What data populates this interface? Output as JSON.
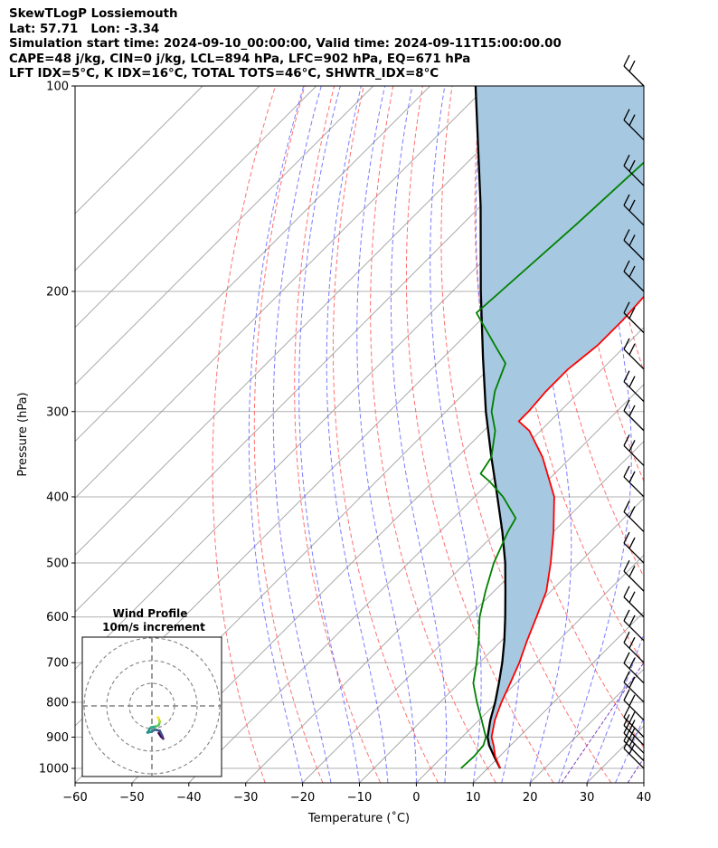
{
  "header": {
    "line1": "SkewTLogP Lossiemouth",
    "line2": "Lat: 57.71   Lon: -3.34",
    "line3": "Simulation start time: 2024-09-10_00:00:00, Valid time: 2024-09-11T15:00:00.00",
    "line4": "CAPE=48 j/kg, CIN=0 j/kg, LCL=894 hPa, LFC=902 hPa, EQ=671 hPa",
    "line5": "LFT IDX=5°C, K IDX=16°C, TOTAL TOTS=46°C, SHWTR_IDX=8°C"
  },
  "chart_data": {
    "type": "line",
    "xlabel": "Temperature (˚C)",
    "ylabel": "Pressure (hPa)",
    "xlim": [
      -60,
      40
    ],
    "ylim": [
      1050,
      100
    ],
    "y_scale": "log",
    "skew": true,
    "grid": true,
    "x_ticks": [
      "−60",
      "−50",
      "−40",
      "−30",
      "−20",
      "−10",
      "0",
      "10",
      "20",
      "30",
      "40"
    ],
    "y_ticks": [
      "100",
      "200",
      "300",
      "400",
      "500",
      "600",
      "700",
      "800",
      "900",
      "1000"
    ],
    "colors": {
      "temperature": "#ff0000",
      "dewpoint": "#008000",
      "parcel": "#000000",
      "cape_fill": "#a6c8e0",
      "dry_adiabat": "#ff6060",
      "moist_adiabat": "#5a5aff",
      "mixing_ratio": "#7d3fbf",
      "isotherm": "#a0a0a0"
    },
    "series": [],
    "temperature_profile": [
      {
        "p": 1000,
        "t": 12.2
      },
      {
        "p": 960,
        "t": 9.2
      },
      {
        "p": 925,
        "t": 7.0
      },
      {
        "p": 900,
        "t": 5.2
      },
      {
        "p": 850,
        "t": 2.8
      },
      {
        "p": 800,
        "t": 0.8
      },
      {
        "p": 750,
        "t": -1.0
      },
      {
        "p": 700,
        "t": -3.0
      },
      {
        "p": 650,
        "t": -5.5
      },
      {
        "p": 600,
        "t": -8.0
      },
      {
        "p": 550,
        "t": -10.8
      },
      {
        "p": 500,
        "t": -15.0
      },
      {
        "p": 450,
        "t": -20.0
      },
      {
        "p": 400,
        "t": -26.0
      },
      {
        "p": 350,
        "t": -35.0
      },
      {
        "p": 320,
        "t": -42.0
      },
      {
        "p": 310,
        "t": -45.5
      },
      {
        "p": 300,
        "t": -45.5
      },
      {
        "p": 280,
        "t": -46.0
      },
      {
        "p": 260,
        "t": -46.0
      },
      {
        "p": 240,
        "t": -45.0
      },
      {
        "p": 220,
        "t": -45.0
      },
      {
        "p": 200,
        "t": -45.5
      },
      {
        "p": 180,
        "t": -47.0
      },
      {
        "p": 160,
        "t": -49.0
      },
      {
        "p": 140,
        "t": -50.5
      },
      {
        "p": 120,
        "t": -52.5
      },
      {
        "p": 100,
        "t": -54.0
      }
    ],
    "dewpoint_profile": [
      {
        "p": 1000,
        "t": 5.3
      },
      {
        "p": 960,
        "t": 5.5
      },
      {
        "p": 925,
        "t": 5.2
      },
      {
        "p": 900,
        "t": 4.2
      },
      {
        "p": 850,
        "t": 0.5
      },
      {
        "p": 800,
        "t": -3.5
      },
      {
        "p": 750,
        "t": -7.5
      },
      {
        "p": 700,
        "t": -10.5
      },
      {
        "p": 650,
        "t": -14.0
      },
      {
        "p": 600,
        "t": -18.0
      },
      {
        "p": 550,
        "t": -21.5
      },
      {
        "p": 500,
        "t": -25.0
      },
      {
        "p": 450,
        "t": -28.0
      },
      {
        "p": 430,
        "t": -29.0
      },
      {
        "p": 400,
        "t": -35.0
      },
      {
        "p": 380,
        "t": -40.0
      },
      {
        "p": 370,
        "t": -43.0
      },
      {
        "p": 350,
        "t": -44.0
      },
      {
        "p": 320,
        "t": -48.0
      },
      {
        "p": 300,
        "t": -52.0
      },
      {
        "p": 280,
        "t": -55.0
      },
      {
        "p": 255,
        "t": -58.0
      },
      {
        "p": 240,
        "t": -63.0
      },
      {
        "p": 215,
        "t": -72.0
      },
      {
        "p": 200,
        "t": -71.5
      },
      {
        "p": 160,
        "t": -70.0
      },
      {
        "p": 130,
        "t": -69.0
      },
      {
        "p": 100,
        "t": -68.5
      }
    ],
    "parcel_profile": [
      {
        "p": 1000,
        "t": 12.2
      },
      {
        "p": 960,
        "t": 9.0
      },
      {
        "p": 925,
        "t": 6.2
      },
      {
        "p": 900,
        "t": 4.5
      },
      {
        "p": 850,
        "t": 2.0
      },
      {
        "p": 800,
        "t": -0.3
      },
      {
        "p": 750,
        "t": -3.0
      },
      {
        "p": 700,
        "t": -6.0
      },
      {
        "p": 650,
        "t": -9.5
      },
      {
        "p": 600,
        "t": -13.5
      },
      {
        "p": 550,
        "t": -18.0
      },
      {
        "p": 500,
        "t": -23.0
      },
      {
        "p": 450,
        "t": -29.0
      },
      {
        "p": 400,
        "t": -36.0
      },
      {
        "p": 350,
        "t": -44.0
      },
      {
        "p": 300,
        "t": -53.0
      },
      {
        "p": 250,
        "t": -63.0
      },
      {
        "p": 200,
        "t": -75.0
      },
      {
        "p": 150,
        "t": -90.0
      },
      {
        "p": 100,
        "t": -112.0
      }
    ],
    "wind_barbs_pressure": [
      100,
      120,
      140,
      160,
      180,
      200,
      230,
      260,
      290,
      320,
      360,
      400,
      450,
      500,
      550,
      600,
      650,
      700,
      750,
      800,
      850,
      900,
      925,
      950,
      975,
      1000
    ],
    "inset": {
      "title_line1": "Wind Profile",
      "title_line2": "10m/s increment",
      "rings_ms": [
        10,
        20,
        30
      ],
      "hodograph": [
        {
          "u": 3.0,
          "v": -12.0
        },
        {
          "u": 4.0,
          "v": -13.5
        },
        {
          "u": 5.0,
          "v": -14.5
        },
        {
          "u": 4.5,
          "v": -13.0
        },
        {
          "u": 3.5,
          "v": -11.0
        },
        {
          "u": 1.5,
          "v": -10.5
        },
        {
          "u": -0.5,
          "v": -11.5
        },
        {
          "u": -2.0,
          "v": -11.8
        },
        {
          "u": -0.5,
          "v": -9.5
        },
        {
          "u": 2.0,
          "v": -9.0
        },
        {
          "u": 3.0,
          "v": -8.5
        },
        {
          "u": 3.5,
          "v": -7.0
        },
        {
          "u": 3.0,
          "v": -5.5
        },
        {
          "u": 2.5,
          "v": -5.0
        }
      ]
    }
  }
}
